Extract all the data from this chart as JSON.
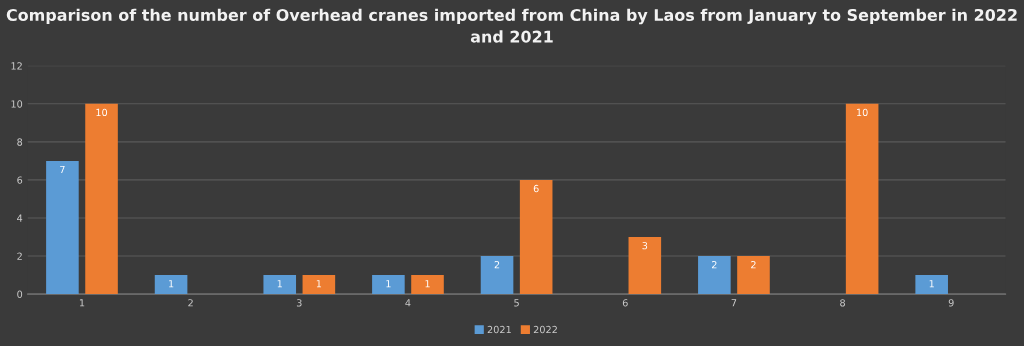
{
  "chart_data": {
    "type": "bar",
    "title": "Comparison of the number of Overhead cranes imported from China by Laos from January to September in 2022 and 2021",
    "categories": [
      "1",
      "2",
      "3",
      "4",
      "5",
      "6",
      "7",
      "8",
      "9"
    ],
    "series": [
      {
        "name": "2021",
        "color": "#5b9bd5",
        "values": [
          7,
          1,
          1,
          1,
          2,
          null,
          2,
          null,
          1
        ]
      },
      {
        "name": "2022",
        "color": "#ed7d31",
        "values": [
          10,
          null,
          1,
          1,
          6,
          3,
          2,
          10,
          null
        ]
      }
    ],
    "ylim": [
      0,
      12
    ],
    "yticks": [
      0,
      2,
      4,
      6,
      8,
      10,
      12
    ],
    "grid": "y",
    "legend": "bottom",
    "data_labels": true
  }
}
